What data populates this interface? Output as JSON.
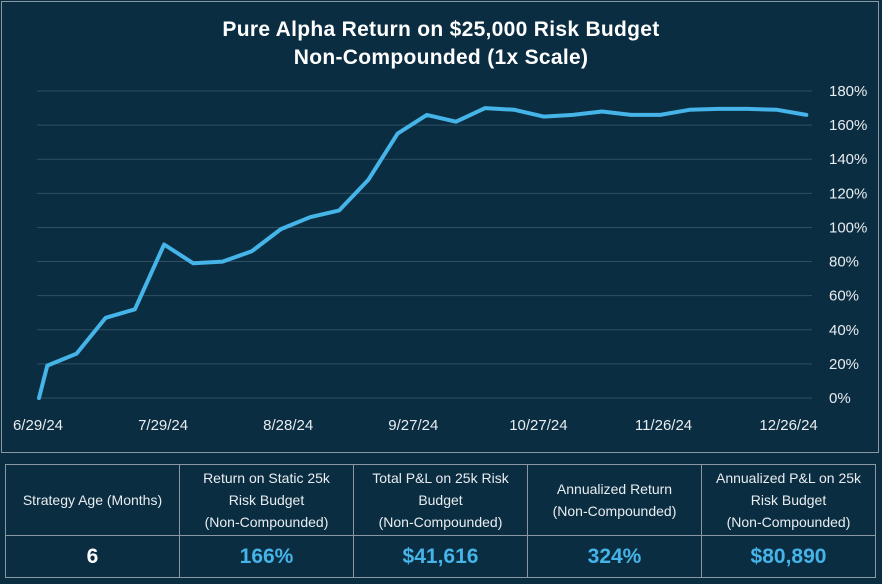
{
  "chart_data": {
    "type": "line",
    "title": "Pure Alpha Return on $25,000 Risk Budget",
    "subtitle": "Non-Compounded (1x Scale)",
    "xlabel": "",
    "ylabel": "",
    "x_ticks": [
      "6/29/24",
      "7/29/24",
      "8/28/24",
      "9/27/24",
      "10/27/24",
      "11/26/24",
      "12/26/24"
    ],
    "y_ticks": [
      "0%",
      "20%",
      "40%",
      "60%",
      "80%",
      "100%",
      "120%",
      "140%",
      "160%",
      "180%"
    ],
    "ylim": [
      0,
      180
    ],
    "y_axis_side": "right",
    "grid": true,
    "line_color": "#45b4e8",
    "series": [
      {
        "x": [
          "2024-06-29",
          "2024-07-01",
          "2024-07-08",
          "2024-07-15",
          "2024-07-22",
          "2024-07-29",
          "2024-08-05",
          "2024-08-12",
          "2024-08-19",
          "2024-08-26",
          "2024-09-02",
          "2024-09-09",
          "2024-09-16",
          "2024-09-23",
          "2024-09-30",
          "2024-10-07",
          "2024-10-14",
          "2024-10-21",
          "2024-10-28",
          "2024-11-04",
          "2024-11-11",
          "2024-11-18",
          "2024-11-25",
          "2024-12-02",
          "2024-12-09",
          "2024-12-16",
          "2024-12-23",
          "2024-12-30"
        ],
        "values": [
          0,
          19,
          26,
          47,
          52,
          90,
          79,
          80,
          86,
          99,
          106,
          110,
          128,
          155,
          166,
          162,
          170,
          169,
          165,
          166,
          168,
          166,
          166,
          169,
          169.5,
          169.5,
          169,
          166
        ]
      }
    ]
  },
  "summary_table": {
    "headers": [
      [
        "Strategy Age (Months)"
      ],
      [
        "Return on Static 25k",
        "Risk Budget",
        "(Non-Compounded)"
      ],
      [
        "Total P&L on 25k Risk",
        "Budget",
        "(Non-Compounded)"
      ],
      [
        "Annualized Return",
        "(Non-Compounded)"
      ],
      [
        "Annualized P&L on 25k",
        "Risk Budget",
        "(Non-Compounded)"
      ]
    ],
    "values": [
      "6",
      "166%",
      "$41,616",
      "324%",
      "$80,890"
    ]
  }
}
